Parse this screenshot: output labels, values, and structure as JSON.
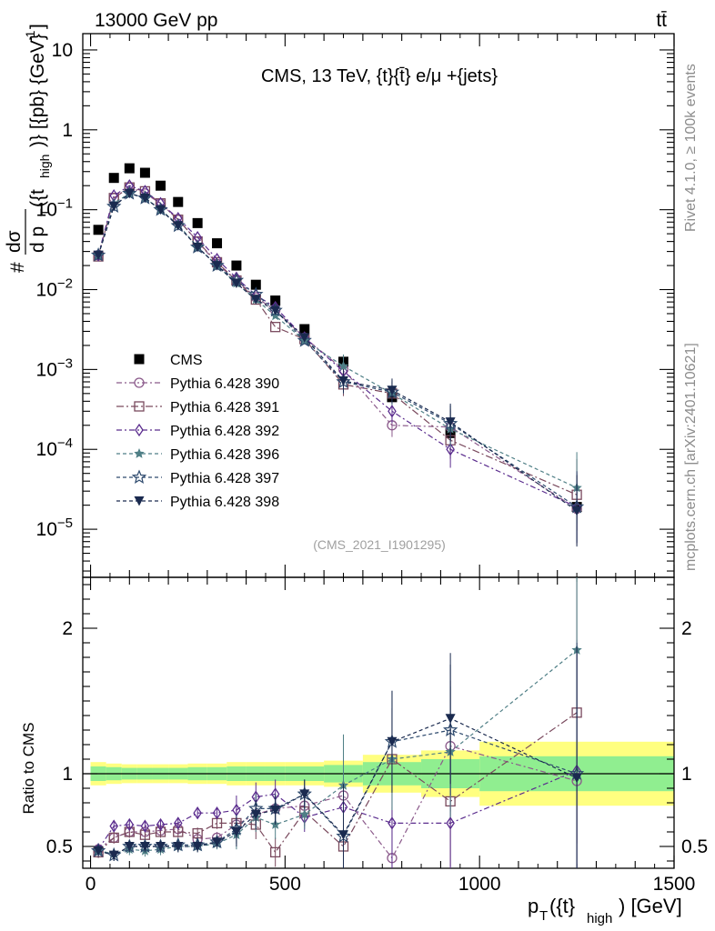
{
  "header": {
    "left": "13000 GeV pp",
    "right": "tt̄",
    "side_top": "Rivet 4.1.0, ≥ 100k events",
    "side_bottom": "mcplots.cern.ch [arXiv:2401.10621]"
  },
  "colors": {
    "CMS": "#000000",
    "p390": "#8b5a8b",
    "p391": "#7a4a5e",
    "p392": "#5b2d8e",
    "p396": "#4f7f86",
    "p397": "#2e4a6e",
    "p398": "#1a2a4f",
    "band_stat": "#90ee90",
    "band_total": "#ffff80"
  },
  "chart_data": [
    {
      "panel": "main",
      "type": "scatter",
      "title": "CMS, 13 TeV, {t}{t̄} e/μ +{jets}",
      "watermark": "(CMS_2021_I1901295)",
      "ylabel": "#dσ / d p_T({t}_high) [{pb} {GeV}^-1]",
      "ylabel_parts": {
        "frac_top": "dσ",
        "frac_bottom": "d p",
        "sub_T": "T",
        "arg": "({t",
        "sub_high": "high",
        "close": ")} [{pb} {GeV}",
        "sup": "-1",
        "end": "]",
        "hash": "#"
      },
      "yscale": "log",
      "ylim": [
        2.5e-06,
        16
      ],
      "yticks": [
        {
          "v": 1e-05,
          "b": "10",
          "e": "−5"
        },
        {
          "v": 0.0001,
          "b": "10",
          "e": "−4"
        },
        {
          "v": 0.001,
          "b": "10",
          "e": "−3"
        },
        {
          "v": 0.01,
          "b": "10",
          "e": "−2"
        },
        {
          "v": 0.1,
          "b": "10",
          "e": "−1"
        },
        {
          "v": 1,
          "b": "1",
          "e": ""
        },
        {
          "v": 10,
          "b": "10",
          "e": ""
        }
      ],
      "x": [
        20,
        60,
        100,
        140,
        180,
        225,
        275,
        325,
        375,
        425,
        475,
        550,
        650,
        775,
        925,
        1250
      ],
      "series": [
        {
          "name": "CMS",
          "marker": "square",
          "values": [
            0.056,
            0.25,
            0.33,
            0.29,
            0.2,
            0.125,
            0.068,
            0.038,
            0.02,
            0.0115,
            0.0073,
            0.0032,
            0.00125,
            0.00045,
            0.00016,
            1.9e-05
          ]
        },
        {
          "name": "Pythia 6.428 390",
          "marker": "circle",
          "values": [
            0.027,
            0.14,
            0.19,
            0.16,
            0.12,
            0.075,
            0.04,
            0.021,
            0.013,
            0.008,
            0.0055,
            0.0025,
            0.001,
            0.0002,
            0.00019,
            1.8e-05
          ]
        },
        {
          "name": "Pythia 6.428 391",
          "marker": "square-open",
          "values": [
            0.026,
            0.14,
            0.19,
            0.17,
            0.12,
            0.075,
            0.04,
            0.022,
            0.013,
            0.0075,
            0.0034,
            0.0024,
            0.00065,
            0.0005,
            0.00013,
            2.7e-05
          ]
        },
        {
          "name": "Pythia 6.428 392",
          "marker": "diamond",
          "values": [
            0.027,
            0.15,
            0.2,
            0.17,
            0.12,
            0.078,
            0.045,
            0.024,
            0.014,
            0.0085,
            0.006,
            0.0025,
            0.00095,
            0.0003,
            0.0001,
            1.9e-05
          ]
        },
        {
          "name": "Pythia 6.428 396",
          "marker": "star",
          "values": [
            0.027,
            0.12,
            0.16,
            0.14,
            0.1,
            0.065,
            0.034,
            0.02,
            0.012,
            0.0075,
            0.0047,
            0.0023,
            0.0011,
            0.0005,
            0.00018,
            3.3e-05
          ]
        },
        {
          "name": "Pythia 6.428 397",
          "marker": "star-open",
          "values": [
            0.027,
            0.11,
            0.16,
            0.14,
            0.1,
            0.063,
            0.034,
            0.02,
            0.013,
            0.0087,
            0.0055,
            0.0023,
            0.0007,
            0.00052,
            0.00021,
            1.9e-05
          ]
        },
        {
          "name": "Pythia 6.428 398",
          "marker": "triangle-down",
          "values": [
            0.027,
            0.11,
            0.16,
            0.14,
            0.1,
            0.063,
            0.034,
            0.02,
            0.012,
            0.0075,
            0.0055,
            0.0025,
            0.00072,
            0.00055,
            0.00022,
            1.7e-05
          ]
        }
      ],
      "legend": [
        "CMS",
        "Pythia 6.428 390",
        "Pythia 6.428 391",
        "Pythia 6.428 392",
        "Pythia 6.428 396",
        "Pythia 6.428 397",
        "Pythia 6.428 398"
      ],
      "legend_position": "lower-left"
    },
    {
      "panel": "ratio",
      "type": "line",
      "ylabel": "Ratio to CMS",
      "xlabel": "p_T({t}_high) [GeV]",
      "xlabel_parts": {
        "p": "p",
        "sub_T": "T",
        "arg": "({t}",
        "sub_high": "high",
        "end": ") [GeV]"
      },
      "xlim": [
        -20,
        1500
      ],
      "xticks": [
        0,
        500,
        1000,
        1500
      ],
      "ylim": [
        0.35,
        2.35
      ],
      "yticks": [
        0.5,
        1,
        2
      ],
      "bands": {
        "edges": [
          0,
          40,
          80,
          120,
          160,
          200,
          250,
          300,
          350,
          400,
          450,
          500,
          600,
          700,
          850,
          1000,
          1500
        ],
        "stat": [
          0.05,
          0.045,
          0.04,
          0.04,
          0.04,
          0.04,
          0.045,
          0.045,
          0.05,
          0.05,
          0.05,
          0.05,
          0.06,
          0.08,
          0.1,
          0.12,
          0.12
        ],
        "total": [
          0.08,
          0.07,
          0.065,
          0.065,
          0.065,
          0.065,
          0.07,
          0.07,
          0.08,
          0.08,
          0.08,
          0.08,
          0.09,
          0.13,
          0.16,
          0.22,
          0.22
        ]
      },
      "x": [
        20,
        60,
        100,
        140,
        180,
        225,
        275,
        325,
        375,
        425,
        475,
        550,
        650,
        775,
        925,
        1250
      ],
      "series": [
        {
          "name": "Pythia 6.428 390",
          "values": [
            0.48,
            0.56,
            0.6,
            0.6,
            0.61,
            0.62,
            0.55,
            0.56,
            0.65,
            0.72,
            0.76,
            0.78,
            0.85,
            0.42,
            1.19,
            0.95
          ]
        },
        {
          "name": "Pythia 6.428 391",
          "values": [
            0.46,
            0.56,
            0.6,
            0.58,
            0.6,
            0.6,
            0.59,
            0.66,
            0.66,
            0.65,
            0.46,
            0.74,
            0.5,
            1.1,
            0.81,
            1.42
          ]
        },
        {
          "name": "Pythia 6.428 392",
          "values": [
            0.48,
            0.64,
            0.65,
            0.64,
            0.65,
            0.66,
            0.73,
            0.73,
            0.75,
            0.84,
            0.86,
            0.7,
            0.77,
            0.66,
            0.66,
            1.02
          ]
        },
        {
          "name": "Pythia 6.428 396",
          "values": [
            0.47,
            0.45,
            0.48,
            0.47,
            0.48,
            0.5,
            0.5,
            0.52,
            0.58,
            0.7,
            0.65,
            0.72,
            0.92,
            1.1,
            1.15,
            1.85
          ]
        },
        {
          "name": "Pythia 6.428 397",
          "values": [
            0.47,
            0.44,
            0.5,
            0.5,
            0.5,
            0.51,
            0.51,
            0.53,
            0.62,
            0.76,
            0.76,
            0.86,
            0.57,
            1.22,
            1.3,
            1.0
          ]
        },
        {
          "name": "Pythia 6.428 398",
          "values": [
            0.47,
            0.44,
            0.5,
            0.5,
            0.5,
            0.5,
            0.5,
            0.53,
            0.6,
            0.72,
            0.75,
            0.86,
            0.58,
            1.22,
            1.38,
            0.97
          ]
        }
      ],
      "reference_line": 1
    }
  ]
}
